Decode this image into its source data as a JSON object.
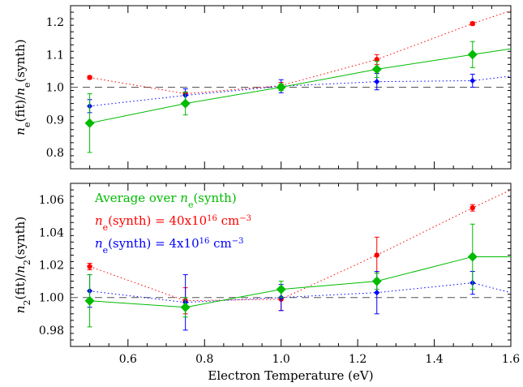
{
  "chart_data": [
    {
      "type": "line",
      "panel": "top",
      "ylabel_parts": {
        "lhs": "n",
        "lhs_sub": "e",
        "lhs_arg": "(fit)",
        "sep": "/",
        "rhs": "n",
        "rhs_sub": "e",
        "rhs_arg": "(synth)"
      },
      "xlim": [
        0.45,
        1.6
      ],
      "ylim": [
        0.75,
        1.25
      ],
      "y_ticks": [
        0.8,
        0.9,
        1.0,
        1.1,
        1.2
      ],
      "y_tick_labels": [
        "0.8",
        "0.9",
        "1.0",
        "1.1",
        "1.2"
      ],
      "reference_line": 1.0,
      "series": [
        {
          "color": "#ff0000",
          "style": "dotted",
          "marker": "circle",
          "x": [
            0.5,
            0.75,
            1.0,
            1.25,
            1.5
          ],
          "y": [
            1.03,
            0.98,
            1.005,
            1.085,
            1.195
          ],
          "err": [
            0.005,
            0.005,
            0.01,
            0.015,
            0.005
          ],
          "line_x": [
            0.5,
            0.75,
            1.0,
            1.25,
            1.5,
            1.6
          ],
          "line_y": [
            1.03,
            0.98,
            1.005,
            1.085,
            1.195,
            1.235
          ]
        },
        {
          "color": "#0000ff",
          "style": "dotted",
          "marker": "diamond-small",
          "x": [
            0.5,
            0.75,
            1.0,
            1.25,
            1.5
          ],
          "y": [
            0.942,
            0.975,
            1.003,
            1.017,
            1.02
          ],
          "err": [
            0.02,
            0.02,
            0.02,
            0.025,
            0.02
          ],
          "line_x": [
            0.5,
            0.75,
            1.0,
            1.25,
            1.5,
            1.6
          ],
          "line_y": [
            0.942,
            0.975,
            1.003,
            1.017,
            1.02,
            1.034
          ]
        },
        {
          "color": "#00bb00",
          "style": "solid",
          "marker": "diamond-large",
          "x": [
            0.5,
            0.75,
            1.0,
            1.25,
            1.5
          ],
          "y": [
            0.89,
            0.95,
            1.0,
            1.055,
            1.1
          ],
          "err": [
            0.09,
            0.035,
            0.01,
            0.025,
            0.04
          ],
          "line_x": [
            0.5,
            0.75,
            1.0,
            1.25,
            1.5,
            1.6
          ],
          "line_y": [
            0.89,
            0.95,
            1.0,
            1.055,
            1.1,
            1.118
          ]
        }
      ]
    },
    {
      "type": "line",
      "panel": "bottom",
      "ylabel_parts": {
        "lhs": "n",
        "lhs_sub": "2",
        "lhs_arg": "(fit)",
        "sep": "/",
        "rhs": "n",
        "rhs_sub": "2",
        "rhs_arg": "(synth)"
      },
      "xlabel": "Electron Temperature (eV)",
      "xlim": [
        0.45,
        1.6
      ],
      "ylim": [
        0.97,
        1.07
      ],
      "x_ticks": [
        0.6,
        0.8,
        1.0,
        1.2,
        1.4,
        1.6
      ],
      "x_tick_labels": [
        "0.6",
        "0.8",
        "1.0",
        "1.2",
        "1.4",
        "1.6"
      ],
      "y_ticks": [
        0.98,
        1.0,
        1.02,
        1.04,
        1.06
      ],
      "y_tick_labels": [
        "0.98",
        "1.00",
        "1.02",
        "1.04",
        "1.06"
      ],
      "reference_line": 1.0,
      "legend": [
        {
          "color": "#00bb00",
          "parts": [
            {
              "t": "Average over "
            },
            {
              "t": "n",
              "i": true
            },
            {
              "t": "e",
              "sub": true
            },
            {
              "t": "(synth)"
            }
          ]
        },
        {
          "color": "#ff0000",
          "parts": [
            {
              "t": "n",
              "i": true
            },
            {
              "t": "e",
              "sub": true
            },
            {
              "t": "(synth) = 40x10"
            },
            {
              "t": "16",
              "sup": true
            },
            {
              "t": " cm"
            },
            {
              "t": "−3",
              "sup": true
            }
          ]
        },
        {
          "color": "#0000ff",
          "parts": [
            {
              "t": "n",
              "i": true
            },
            {
              "t": "e",
              "sub": true
            },
            {
              "t": "(synth) = 4x10"
            },
            {
              "t": "16",
              "sup": true
            },
            {
              "t": " cm"
            },
            {
              "t": "−3",
              "sup": true
            }
          ]
        }
      ],
      "series": [
        {
          "color": "#ff0000",
          "style": "dotted",
          "marker": "circle",
          "x": [
            0.5,
            0.75,
            1.0,
            1.25,
            1.5
          ],
          "y": [
            1.019,
            0.998,
            0.999,
            1.026,
            1.055
          ],
          "err": [
            0.002,
            0.008,
            0.007,
            0.011,
            0.002
          ],
          "line_x": [
            0.5,
            0.75,
            1.0,
            1.25,
            1.5,
            1.6
          ],
          "line_y": [
            1.019,
            0.998,
            0.999,
            1.026,
            1.055,
            1.066
          ]
        },
        {
          "color": "#0000ff",
          "style": "dotted",
          "marker": "diamond-small",
          "x": [
            0.5,
            0.75,
            1.0,
            1.25,
            1.5
          ],
          "y": [
            1.004,
            0.997,
            1.0,
            1.003,
            1.009
          ],
          "err": [
            0.01,
            0.017,
            0.008,
            0.013,
            0.007
          ],
          "line_x": [
            0.5,
            0.75,
            1.0,
            1.25,
            1.5,
            1.6
          ],
          "line_y": [
            1.004,
            0.997,
            1.0,
            1.003,
            1.009,
            1.003
          ]
        },
        {
          "color": "#00bb00",
          "style": "solid",
          "marker": "diamond-large",
          "x": [
            0.5,
            0.75,
            1.0,
            1.25,
            1.5
          ],
          "y": [
            0.998,
            0.994,
            1.005,
            1.01,
            1.025
          ],
          "err": [
            0.016,
            0.006,
            0.005,
            0.005,
            0.02
          ],
          "line_x": [
            0.5,
            0.75,
            1.0,
            1.25,
            1.5,
            1.6
          ],
          "line_y": [
            0.998,
            0.994,
            1.005,
            1.01,
            1.025,
            1.025
          ]
        }
      ]
    }
  ]
}
